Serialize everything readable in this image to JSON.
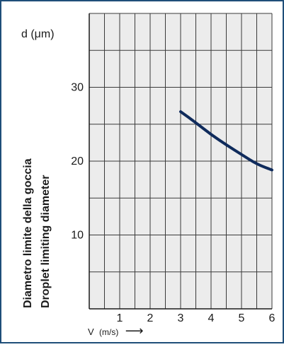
{
  "chart_data": {
    "type": "line",
    "xlabel_prefix": "V",
    "xlabel_unit": "(m/s)",
    "xlabel_arrow": "⟶",
    "ylabel_top": "d (μm)",
    "ylabel_line1": "Diametro limite della goccia",
    "ylabel_line2": "Droplet limiting diameter",
    "xlim": [
      0,
      6
    ],
    "ylim": [
      0,
      40
    ],
    "x_ticks": [
      1,
      2,
      3,
      4,
      5,
      6
    ],
    "y_ticks": [
      10,
      20,
      30
    ],
    "x_tick_labels": [
      "1",
      "2",
      "3",
      "4",
      "5",
      "6"
    ],
    "y_tick_labels": [
      "10",
      "20",
      "30"
    ],
    "grid": true,
    "x_grid_lines": [
      0.5,
      1,
      1.5,
      2,
      2.5,
      3,
      3.5,
      4,
      4.5,
      5,
      5.5,
      6
    ],
    "y_grid_lines": [
      5,
      10,
      15,
      20,
      25,
      30,
      35,
      40
    ],
    "series": [
      {
        "color": "#0f2b5c",
        "x": [
          3.0,
          3.5,
          4.0,
          4.5,
          5.0,
          5.5,
          6.0
        ],
        "y": [
          26.7,
          25.2,
          23.6,
          22.2,
          20.9,
          19.6,
          18.8
        ]
      }
    ]
  }
}
